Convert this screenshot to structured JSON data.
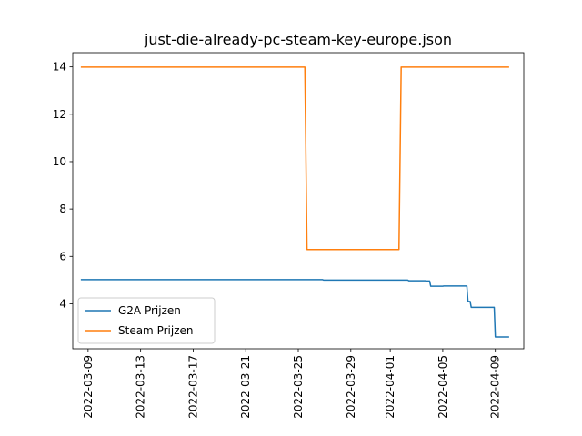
{
  "chart_data": {
    "type": "line",
    "title": "just-die-already-pc-steam-key-europe.json",
    "xlabel": "",
    "ylabel": "",
    "x_axis_type": "date",
    "xlim": [
      "2022-03-07T20:00",
      "2022-04-11T04:00"
    ],
    "ylim": [
      2.1,
      14.6
    ],
    "x_ticks": [
      "2022-03-09",
      "2022-03-13",
      "2022-03-17",
      "2022-03-21",
      "2022-03-25",
      "2022-03-29",
      "2022-04-01",
      "2022-04-05",
      "2022-04-09"
    ],
    "y_ticks": [
      4,
      6,
      8,
      10,
      12,
      14
    ],
    "grid": false,
    "legend": "lower-left",
    "series": [
      {
        "name": "G2A Prijzen",
        "color": "#1f77b4",
        "points": [
          [
            "2022-03-08T12:00",
            5.02
          ],
          [
            "2022-03-26T20:00",
            5.02
          ],
          [
            "2022-03-26T22:00",
            5.0
          ],
          [
            "2022-04-02T08:00",
            5.0
          ],
          [
            "2022-04-02T10:00",
            4.97
          ],
          [
            "2022-04-03T16:00",
            4.97
          ],
          [
            "2022-04-03T18:00",
            4.96
          ],
          [
            "2022-04-04T00:00",
            4.96
          ],
          [
            "2022-04-04T02:00",
            4.74
          ],
          [
            "2022-04-05T00:00",
            4.74
          ],
          [
            "2022-04-05T02:00",
            4.75
          ],
          [
            "2022-04-06T20:00",
            4.75
          ],
          [
            "2022-04-06T22:00",
            4.1
          ],
          [
            "2022-04-07T02:00",
            4.1
          ],
          [
            "2022-04-07T04:00",
            3.85
          ],
          [
            "2022-04-08T22:00",
            3.85
          ],
          [
            "2022-04-09T00:00",
            2.6
          ],
          [
            "2022-04-10T00:00",
            2.6
          ]
        ]
      },
      {
        "name": "Steam Prijzen",
        "color": "#ff7f0e",
        "points": [
          [
            "2022-03-08T12:00",
            13.99
          ],
          [
            "2022-03-25T12:00",
            13.99
          ],
          [
            "2022-03-25T16:00",
            6.29
          ],
          [
            "2022-04-01T16:00",
            6.29
          ],
          [
            "2022-04-01T20:00",
            13.99
          ],
          [
            "2022-04-10T00:00",
            13.99
          ]
        ]
      }
    ]
  }
}
